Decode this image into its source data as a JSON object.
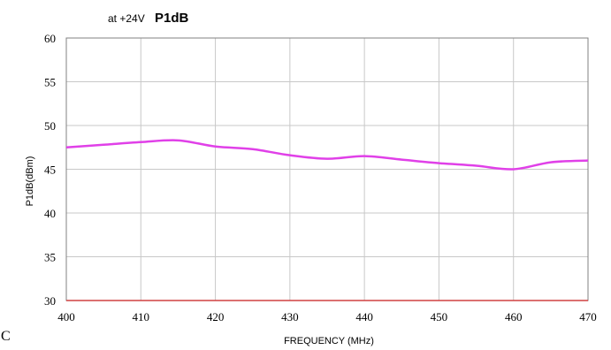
{
  "chart_data": {
    "type": "line",
    "title": "P1dB",
    "subtitle": "at +24V",
    "xlabel": "FREQUENCY (MHz)",
    "ylabel": "P1dB(dBm)",
    "xlim": [
      400,
      470
    ],
    "ylim": [
      30,
      60
    ],
    "x_ticks": [
      "400",
      "410",
      "420",
      "430",
      "440",
      "450",
      "460",
      "470"
    ],
    "y_ticks": [
      "30",
      "35",
      "40",
      "45",
      "50",
      "55",
      "60"
    ],
    "grid": true,
    "series": [
      {
        "color": "#e040e8",
        "x": [
          400,
          405,
          410,
          415,
          420,
          425,
          430,
          435,
          440,
          445,
          450,
          455,
          460,
          465,
          470
        ],
        "y": [
          47.5,
          47.8,
          48.1,
          48.3,
          47.6,
          47.3,
          46.6,
          46.2,
          46.5,
          46.1,
          45.7,
          45.4,
          45.0,
          45.8,
          46.0
        ]
      }
    ],
    "baseline_color": "#d04040",
    "stray_mark": "C"
  }
}
